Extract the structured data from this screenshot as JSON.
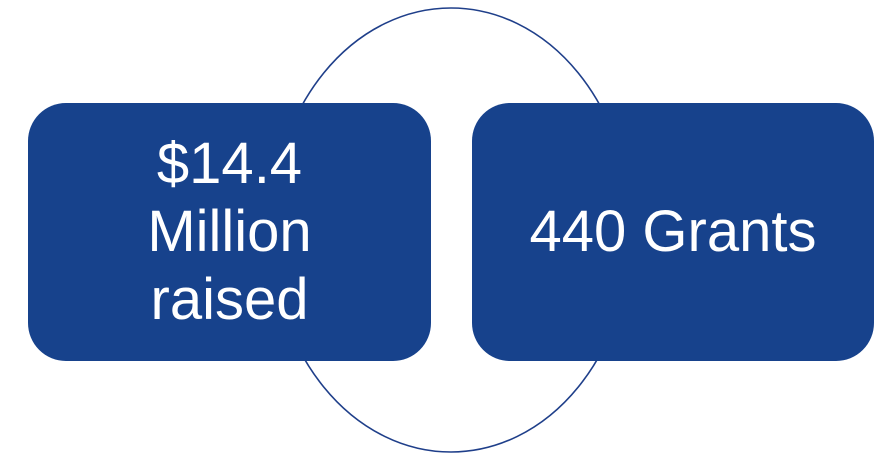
{
  "diagram": {
    "ring_color": "#1f3f8a",
    "box_color": "#17428c",
    "text_color": "#ffffff",
    "nodes": [
      {
        "id": "funds",
        "lines": [
          "$14.4",
          "Million",
          "raised"
        ]
      },
      {
        "id": "grants",
        "lines": [
          "440 Grants"
        ]
      }
    ]
  }
}
